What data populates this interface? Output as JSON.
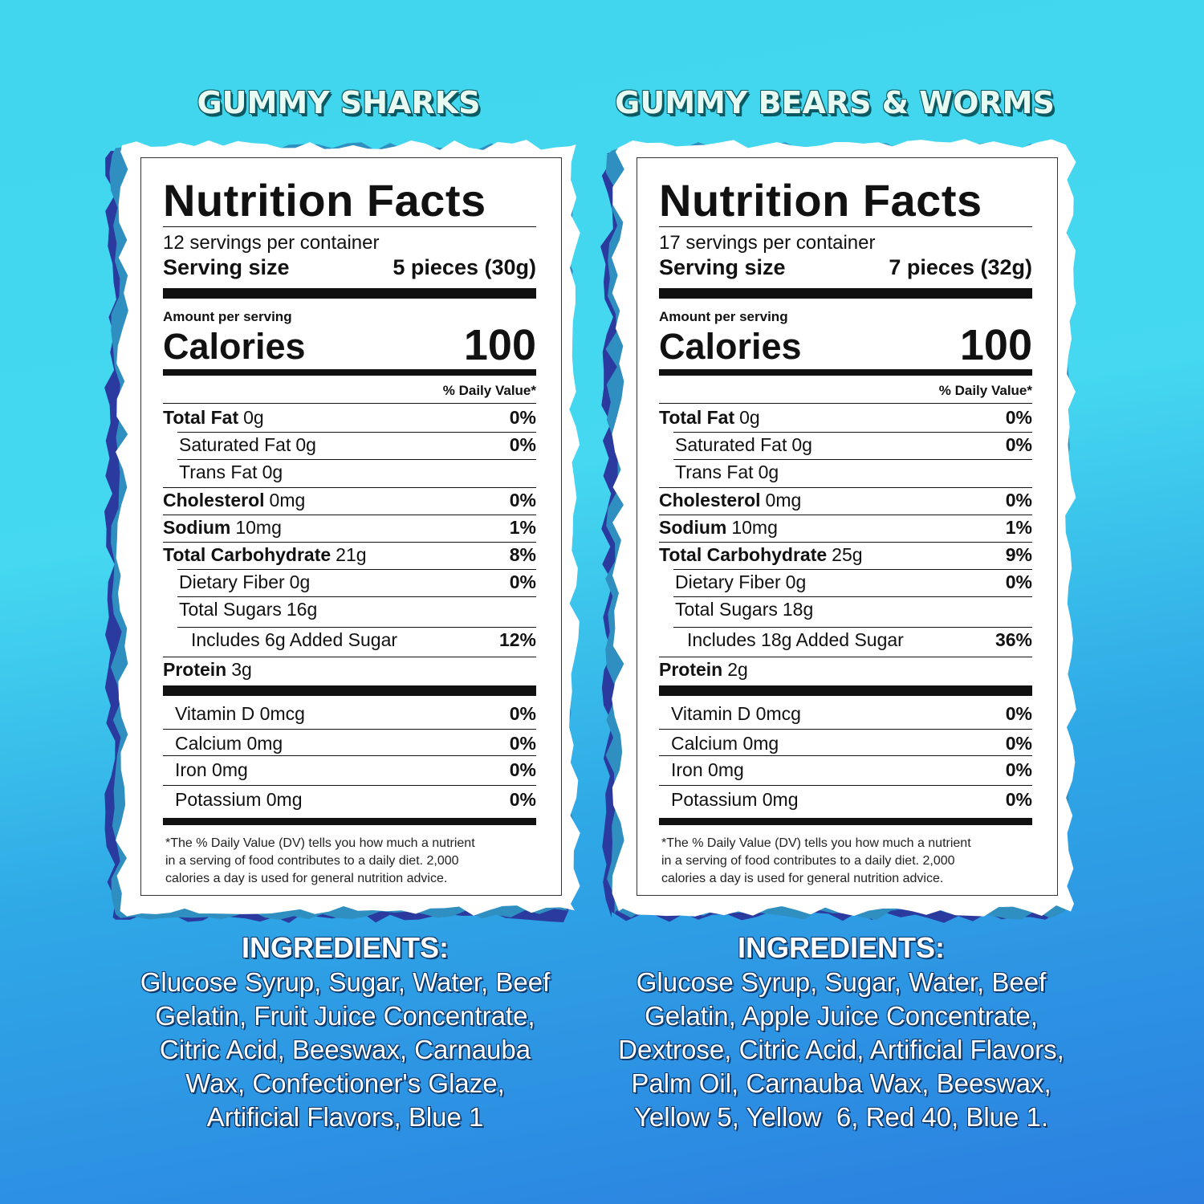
{
  "panels": [
    {
      "title": "GUMMY SHARKS",
      "label": {
        "heading": "Nutrition Facts",
        "servings": "12 servings per container",
        "serving_size_label": "Serving size",
        "serving_size": "5 pieces (30g)",
        "amount_per_serving": "Amount per serving",
        "calories_label": "Calories",
        "calories": "100",
        "dv_header": "% Daily Value*",
        "rows": [
          {
            "name": "Total Fat",
            "amount": "0g",
            "dv": "0%"
          },
          {
            "name": "Saturated Fat",
            "amount": "0g",
            "dv": "0%"
          },
          {
            "name": "Trans Fat",
            "amount": "0g"
          },
          {
            "name": "Cholesterol",
            "amount": "0mg",
            "dv": "0%"
          },
          {
            "name": "Sodium",
            "amount": "10mg",
            "dv": "1%"
          },
          {
            "name": "Total Carbohydrate",
            "amount": "21g",
            "dv": "8%"
          },
          {
            "name": "Dietary Fiber",
            "amount": "0g",
            "dv": "0%"
          },
          {
            "name": "Total Sugars",
            "amount": "16g"
          },
          {
            "name": "Includes 6g Added Sugar",
            "dv": "12%"
          },
          {
            "name": "Protein",
            "amount": "3g"
          }
        ],
        "vitamins": [
          {
            "name": "Vitamin D 0mcg",
            "dv": "0%"
          },
          {
            "name": "Calcium 0mg",
            "dv": "0%"
          },
          {
            "name": "Iron 0mg",
            "dv": "0%"
          },
          {
            "name": "Potassium 0mg",
            "dv": "0%"
          }
        ],
        "footnote": [
          "*The % Daily Value (DV) tells you how much a nutrient",
          "in a serving of food contributes to a daily diet. 2,000",
          "calories a day is used for general nutrition advice."
        ]
      },
      "ingredients_title": "INGREDIENTS:",
      "ingredients": [
        "Glucose Syrup, Sugar, Water, Beef",
        "Gelatin, Fruit Juice Concentrate,",
        "Citric Acid, Beeswax, Carnauba",
        "Wax, Confectioner's Glaze,",
        "Artificial Flavors, Blue 1"
      ]
    },
    {
      "title": "GUMMY BEARS & WORMS",
      "label": {
        "heading": "Nutrition Facts",
        "servings": "17 servings per container",
        "serving_size_label": "Serving size",
        "serving_size": "7 pieces (32g)",
        "amount_per_serving": "Amount per serving",
        "calories_label": "Calories",
        "calories": "100",
        "dv_header": "% Daily Value*",
        "rows": [
          {
            "name": "Total Fat",
            "amount": "0g",
            "dv": "0%"
          },
          {
            "name": "Saturated Fat",
            "amount": "0g",
            "dv": "0%"
          },
          {
            "name": "Trans Fat",
            "amount": "0g"
          },
          {
            "name": "Cholesterol",
            "amount": "0mg",
            "dv": "0%"
          },
          {
            "name": "Sodium",
            "amount": "10mg",
            "dv": "1%"
          },
          {
            "name": "Total Carbohydrate",
            "amount": "25g",
            "dv": "9%"
          },
          {
            "name": "Dietary Fiber",
            "amount": "0g",
            "dv": "0%"
          },
          {
            "name": "Total Sugars",
            "amount": "18g"
          },
          {
            "name": "Includes 18g Added Sugar",
            "dv": "36%"
          },
          {
            "name": "Protein",
            "amount": "2g"
          }
        ],
        "vitamins": [
          {
            "name": "Vitamin D 0mcg",
            "dv": "0%"
          },
          {
            "name": "Calcium 0mg",
            "dv": "0%"
          },
          {
            "name": "Iron 0mg",
            "dv": "0%"
          },
          {
            "name": "Potassium 0mg",
            "dv": "0%"
          }
        ],
        "footnote": [
          "*The % Daily Value (DV) tells you how much a nutrient",
          "in a serving of food contributes to a daily diet. 2,000",
          "calories a day is used for general nutrition advice."
        ]
      },
      "ingredients_title": "INGREDIENTS:",
      "ingredients": [
        "Glucose Syrup, Sugar, Water, Beef",
        "Gelatin, Apple Juice Concentrate,",
        "Dextrose, Citric Acid, Artificial Flavors,",
        "Palm Oil, Carnauba Wax, Beeswax,",
        "Yellow 5, Yellow  6, Red 40, Blue 1."
      ]
    }
  ]
}
